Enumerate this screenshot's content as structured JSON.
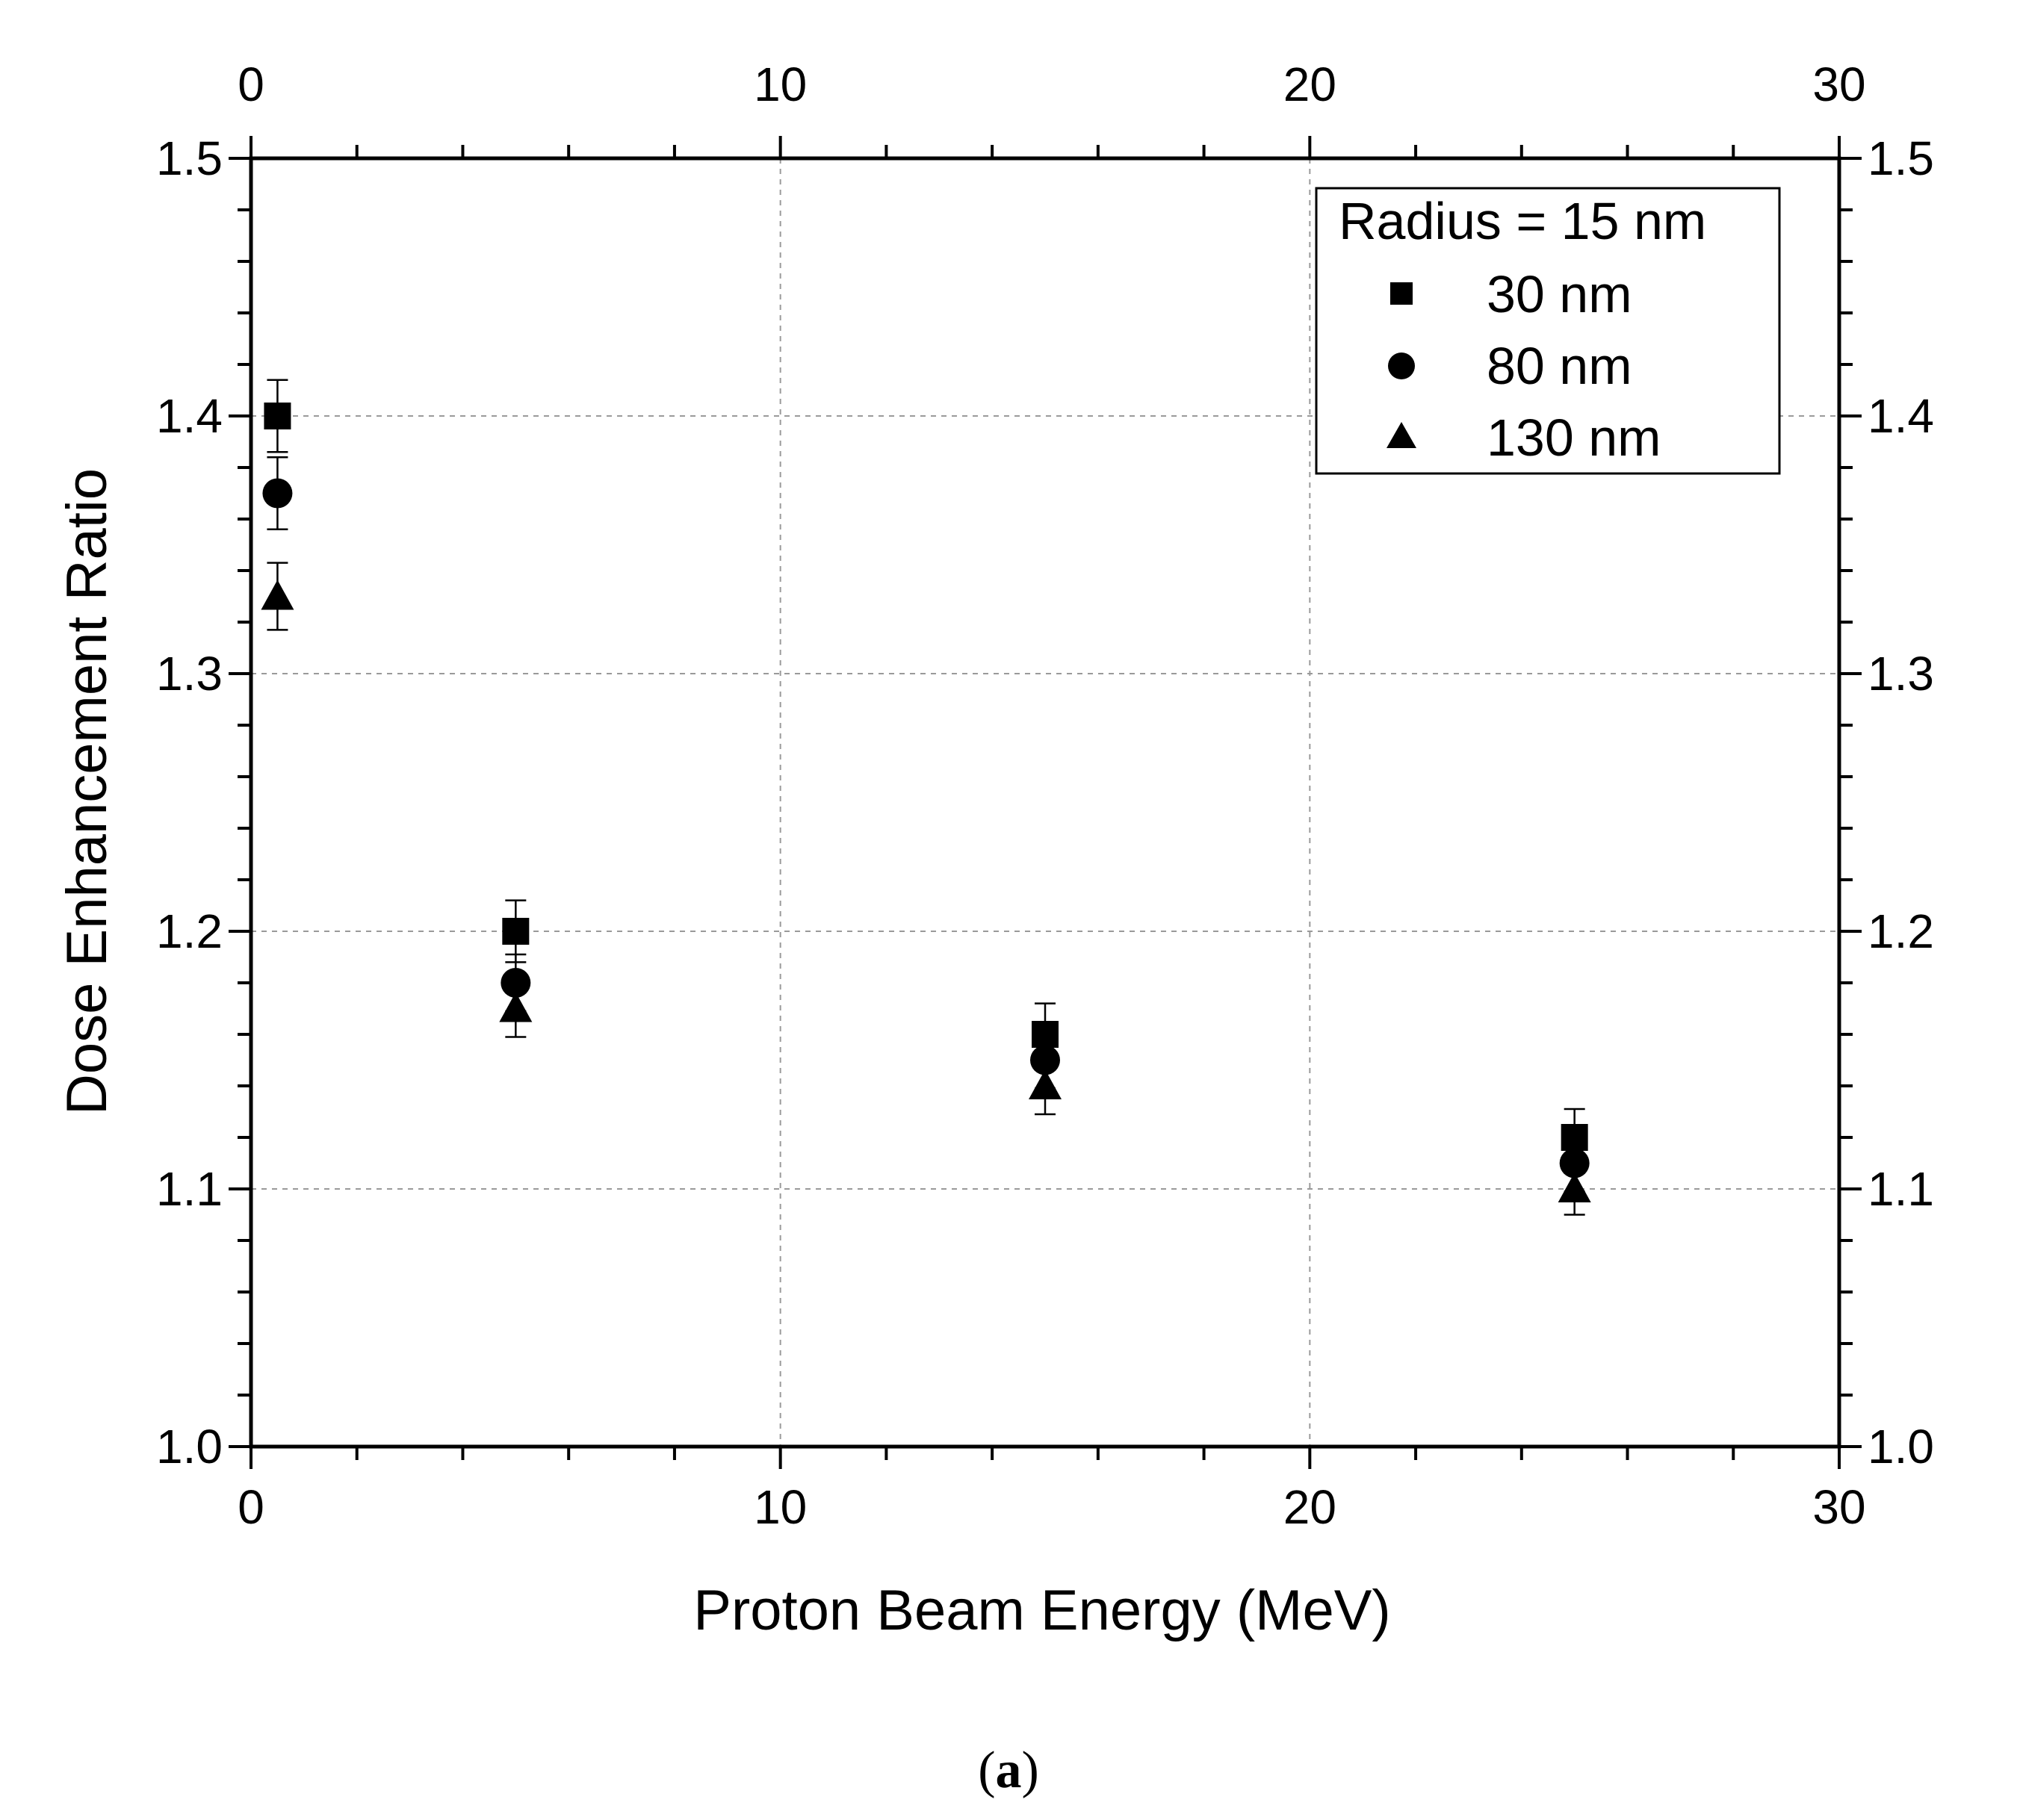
{
  "chart_data": {
    "type": "scatter",
    "title": "",
    "xlabel": "Proton Beam Energy (MeV)",
    "ylabel": "Dose Enhancement Ratio",
    "xlim": [
      0,
      30
    ],
    "ylim": [
      1.0,
      1.5
    ],
    "x_ticks": [
      "0",
      "10",
      "20",
      "30"
    ],
    "y_ticks": [
      "1.0",
      "1.1",
      "1.2",
      "1.3",
      "1.4",
      "1.5"
    ],
    "grid": true,
    "legend_placement": "top-right",
    "legend_title": "Radius = 15 nm",
    "series": [
      {
        "name": "30 nm",
        "marker": "square",
        "x": [
          0.5,
          5,
          15,
          25
        ],
        "values": [
          1.4,
          1.2,
          1.16,
          1.12
        ],
        "error": [
          0.014,
          0.012,
          0.012,
          0.011
        ]
      },
      {
        "name": "80 nm",
        "marker": "circle",
        "x": [
          0.5,
          5,
          15,
          25
        ],
        "values": [
          1.37,
          1.18,
          1.15,
          1.11
        ],
        "error": [
          0.014,
          0.011,
          0.011,
          0.011
        ]
      },
      {
        "name": "130 nm",
        "marker": "triangle",
        "x": [
          0.5,
          5,
          15,
          25
        ],
        "values": [
          1.33,
          1.17,
          1.14,
          1.1
        ],
        "error": [
          0.013,
          0.011,
          0.011,
          0.01
        ]
      }
    ]
  },
  "caption": {
    "open": "(",
    "letter": "a",
    "close": ")"
  },
  "colors": {
    "marker": "#000000",
    "grid": "#9a9a9a",
    "axis": "#000000"
  }
}
